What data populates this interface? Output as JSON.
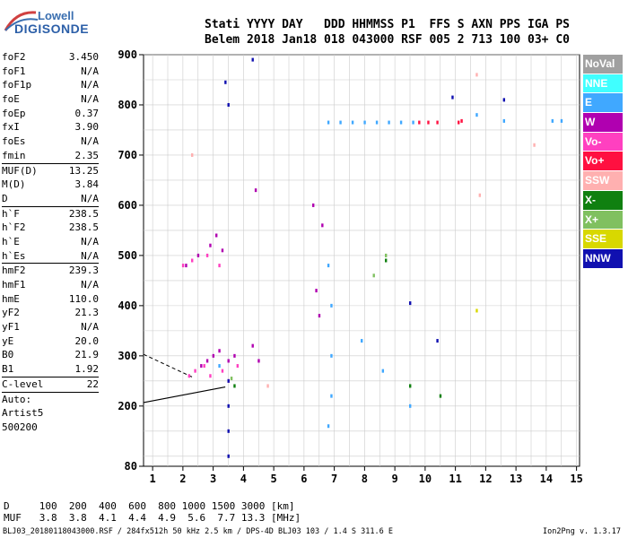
{
  "logo": {
    "brand": "Lowell",
    "product": "DIGISONDE"
  },
  "header": {
    "line1": "Stati YYYY DAY   DDD HHMMSS P1  FFS S AXN PPS IGA PS",
    "line2": "Belem 2018 Jan18 018 043000 RSF 005 2 713 100 03+ C0"
  },
  "params": [
    {
      "key": "foF2",
      "value": "3.450"
    },
    {
      "key": "foF1",
      "value": "N/A"
    },
    {
      "key": "foF1p",
      "value": "N/A"
    },
    {
      "key": "foE",
      "value": "N/A"
    },
    {
      "key": "foEp",
      "value": "0.37"
    },
    {
      "key": "fxI",
      "value": "3.90"
    },
    {
      "key": "foEs",
      "value": "N/A"
    },
    {
      "key": "fmin",
      "value": "2.35"
    },
    {
      "key": "MUF(D)",
      "value": "13.25"
    },
    {
      "key": "M(D)",
      "value": "3.84"
    },
    {
      "key": "D",
      "value": "N/A"
    },
    {
      "key": "h`F",
      "value": "238.5"
    },
    {
      "key": "h`F2",
      "value": "238.5"
    },
    {
      "key": "h`E",
      "value": "N/A"
    },
    {
      "key": "h`Es",
      "value": "N/A"
    },
    {
      "key": "hmF2",
      "value": "239.3"
    },
    {
      "key": "hmF1",
      "value": "N/A"
    },
    {
      "key": "hmE",
      "value": "110.0"
    },
    {
      "key": "yF2",
      "value": "21.3"
    },
    {
      "key": "yF1",
      "value": "N/A"
    },
    {
      "key": "yE",
      "value": "20.0"
    },
    {
      "key": "B0",
      "value": "21.9"
    },
    {
      "key": "B1",
      "value": "1.92"
    },
    {
      "key": "C-level",
      "value": "22"
    },
    {
      "key": "Auto:",
      "value": ""
    },
    {
      "key": "Artist5",
      "value": ""
    },
    {
      "key": "500200",
      "value": ""
    }
  ],
  "legend": [
    {
      "label": "NoVal",
      "color": "#a0a0a0"
    },
    {
      "label": "NNE",
      "color": "#40ffff"
    },
    {
      "label": "E",
      "color": "#40a8ff"
    },
    {
      "label": "W",
      "color": "#b000b0"
    },
    {
      "label": "Vo-",
      "color": "#ff40c0"
    },
    {
      "label": "Vo+",
      "color": "#ff1040"
    },
    {
      "label": "SSW",
      "color": "#ffb0b0"
    },
    {
      "label": "X-",
      "color": "#108010"
    },
    {
      "label": "X+",
      "color": "#80c060"
    },
    {
      "label": "SSE",
      "color": "#d8d800"
    },
    {
      "label": "NNW",
      "color": "#1010b0"
    }
  ],
  "table": {
    "line1": "D     100  200  400  600  800 1000 1500 3000 [km]",
    "line2": "MUF   3.8  3.8  4.1  4.4  4.9  5.6  7.7 13.3 [MHz]"
  },
  "footer": {
    "left": "BLJ03_20180118043000.RSF / 284fx512h 50 kHz 2.5 km / DPS-4D BLJ03 103 / 1.4 S 311.6 E",
    "right": "Ion2Png v. 1.3.17"
  },
  "chart_data": {
    "type": "scatter",
    "title": "",
    "xlabel": "",
    "ylabel": "",
    "xlim": [
      0.7,
      15.1
    ],
    "ylim": [
      80,
      900
    ],
    "xticks": [
      1,
      2,
      3,
      4,
      5,
      6,
      7,
      8,
      9,
      10,
      11,
      12,
      13,
      14,
      15
    ],
    "yticks": [
      80,
      200,
      300,
      400,
      500,
      600,
      700,
      800,
      900
    ],
    "grid": true,
    "legend_position": "right",
    "series": [
      {
        "name": "W",
        "color": "#b000b0",
        "points": [
          [
            2.6,
            280
          ],
          [
            2.8,
            290
          ],
          [
            3.0,
            300
          ],
          [
            3.2,
            310
          ],
          [
            3.5,
            290
          ],
          [
            3.7,
            300
          ],
          [
            4.3,
            320
          ],
          [
            4.5,
            290
          ],
          [
            2.1,
            480
          ],
          [
            2.5,
            500
          ],
          [
            2.9,
            520
          ],
          [
            3.1,
            540
          ],
          [
            3.3,
            510
          ],
          [
            6.4,
            430
          ],
          [
            6.5,
            380
          ],
          [
            6.3,
            600
          ],
          [
            6.6,
            560
          ],
          [
            4.4,
            630
          ]
        ]
      },
      {
        "name": "Vo-",
        "color": "#ff40c0",
        "points": [
          [
            2.2,
            260
          ],
          [
            2.4,
            270
          ],
          [
            2.7,
            280
          ],
          [
            2.9,
            260
          ],
          [
            3.3,
            270
          ],
          [
            3.5,
            250
          ],
          [
            3.8,
            280
          ],
          [
            2.0,
            480
          ],
          [
            2.3,
            490
          ],
          [
            2.8,
            500
          ],
          [
            3.2,
            480
          ]
        ]
      },
      {
        "name": "Vo+",
        "color": "#ff1040",
        "points": [
          [
            9.8,
            765
          ],
          [
            10.1,
            765
          ],
          [
            10.4,
            765
          ],
          [
            11.1,
            765
          ],
          [
            11.2,
            768
          ]
        ]
      },
      {
        "name": "E",
        "color": "#40a8ff",
        "points": [
          [
            6.8,
            765
          ],
          [
            7.2,
            765
          ],
          [
            7.6,
            765
          ],
          [
            8.0,
            765
          ],
          [
            8.4,
            765
          ],
          [
            8.8,
            765
          ],
          [
            9.2,
            765
          ],
          [
            9.6,
            765
          ],
          [
            12.6,
            768
          ],
          [
            14.2,
            768
          ],
          [
            14.5,
            768
          ],
          [
            6.8,
            480
          ],
          [
            6.9,
            400
          ],
          [
            6.9,
            300
          ],
          [
            6.9,
            220
          ],
          [
            6.8,
            160
          ],
          [
            11.7,
            780
          ],
          [
            7.9,
            330
          ],
          [
            8.6,
            270
          ],
          [
            9.5,
            200
          ],
          [
            3.2,
            280
          ]
        ]
      },
      {
        "name": "NNW",
        "color": "#1010b0",
        "points": [
          [
            3.5,
            250
          ],
          [
            3.5,
            200
          ],
          [
            3.5,
            150
          ],
          [
            3.5,
            100
          ],
          [
            3.4,
            845
          ],
          [
            3.5,
            800
          ],
          [
            4.3,
            890
          ],
          [
            9.5,
            405
          ],
          [
            10.4,
            330
          ],
          [
            10.9,
            815
          ],
          [
            12.6,
            810
          ]
        ]
      },
      {
        "name": "X-",
        "color": "#108010",
        "points": [
          [
            3.7,
            240
          ],
          [
            8.7,
            490
          ],
          [
            9.5,
            240
          ],
          [
            10.5,
            220
          ]
        ]
      },
      {
        "name": "X+",
        "color": "#80c060",
        "points": [
          [
            3.6,
            255
          ],
          [
            8.7,
            500
          ],
          [
            8.3,
            460
          ]
        ]
      },
      {
        "name": "SSE",
        "color": "#d8d800",
        "points": [
          [
            11.7,
            390
          ]
        ]
      },
      {
        "name": "SSW",
        "color": "#ffb0b0",
        "points": [
          [
            11.7,
            860
          ],
          [
            11.8,
            620
          ],
          [
            13.6,
            720
          ],
          [
            4.8,
            240
          ],
          [
            2.3,
            700
          ]
        ]
      }
    ]
  }
}
